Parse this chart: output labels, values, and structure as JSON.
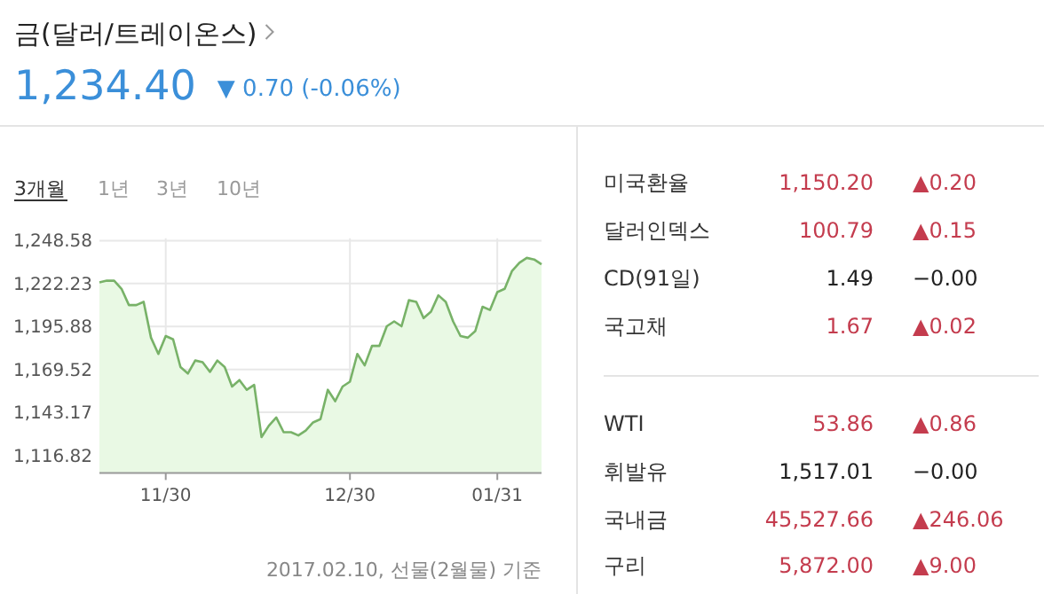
{
  "chart_data": [
    {
      "type": "area",
      "title": "금(달러/트레이온스)",
      "subtitle": "1,234.40",
      "annotations": [
        "▼ 0.70 (-0.06%)",
        "3개월",
        "1년",
        "3년",
        "10년",
        "2017.02.10, 선물(2월물) 기준"
      ],
      "categories": [
        null,
        null,
        null,
        null,
        null,
        null,
        null,
        null,
        null,
        "11/30",
        null,
        null,
        null,
        null,
        null,
        null,
        null,
        null,
        null,
        null,
        null,
        null,
        null,
        null,
        null,
        null,
        null,
        null,
        null,
        null,
        null,
        null,
        null,
        null,
        "12/30",
        null,
        null,
        null,
        null,
        null,
        null,
        null,
        null,
        null,
        null,
        null,
        null,
        null,
        null,
        null,
        null,
        null,
        null,
        null,
        "01/31",
        null,
        null,
        null,
        null,
        null,
        null
      ],
      "values": [
        1223,
        1224,
        1224,
        1219,
        1209,
        1209,
        1211,
        1189,
        1179,
        1190,
        1188,
        1171,
        1167,
        1175,
        1174,
        1168,
        1175,
        1171,
        1159,
        1163,
        1157,
        1160,
        1128,
        1135,
        1140,
        1131,
        1131,
        1129,
        1132,
        1137,
        1139,
        1157,
        1150,
        1159,
        1162,
        1179,
        1172,
        1184,
        1184,
        1196,
        1199,
        1196,
        1212,
        1211,
        1201,
        1205,
        1215,
        1211,
        1199,
        1190,
        1189,
        1193,
        1208,
        1206,
        1217,
        1219,
        1230,
        1235,
        1238,
        1237,
        1234
      ],
      "color": "#78b268",
      "ylim": [
        1106,
        1250
      ],
      "yticks": [
        {
          "value": 1116.82,
          "label": "1,116.82"
        },
        {
          "value": 1143.17,
          "label": "1,143.17"
        },
        {
          "value": 1169.52,
          "label": "1,169.52"
        },
        {
          "value": 1195.88,
          "label": "1,195.88"
        },
        {
          "value": 1222.23,
          "label": "1,222.23"
        },
        {
          "value": 1248.58,
          "label": "1,248.58"
        }
      ],
      "grid": true
    },
    {
      "type": "other",
      "annotations": [
        "미국환율",
        "1,150.20",
        "▲0.20",
        "달러인덱스",
        "100.79",
        "▲0.15",
        "CD(91일)",
        "1.49",
        "−0.00",
        "국고채",
        "1.67",
        "▲0.02",
        "WTI",
        "53.86",
        "▲0.86",
        "휘발유",
        "1,517.01",
        "−0.00",
        "국내금",
        "45,527.66",
        "▲246.06",
        "구리",
        "5,872.00",
        "▲9.00"
      ],
      "colors": [
        "#333333",
        "#c43c4e",
        "#c43c4e",
        "#333333",
        "#c43c4e",
        "#c43c4e",
        "#333333",
        "#222222",
        "#222222",
        "#333333",
        "#c43c4e",
        "#c43c4e",
        "#333333",
        "#c43c4e",
        "#c43c4e",
        "#333333",
        "#222222",
        "#222222",
        "#333333",
        "#c43c4e",
        "#c43c4e",
        "#333333",
        "#c43c4e",
        "#c43c4e"
      ]
    }
  ]
}
